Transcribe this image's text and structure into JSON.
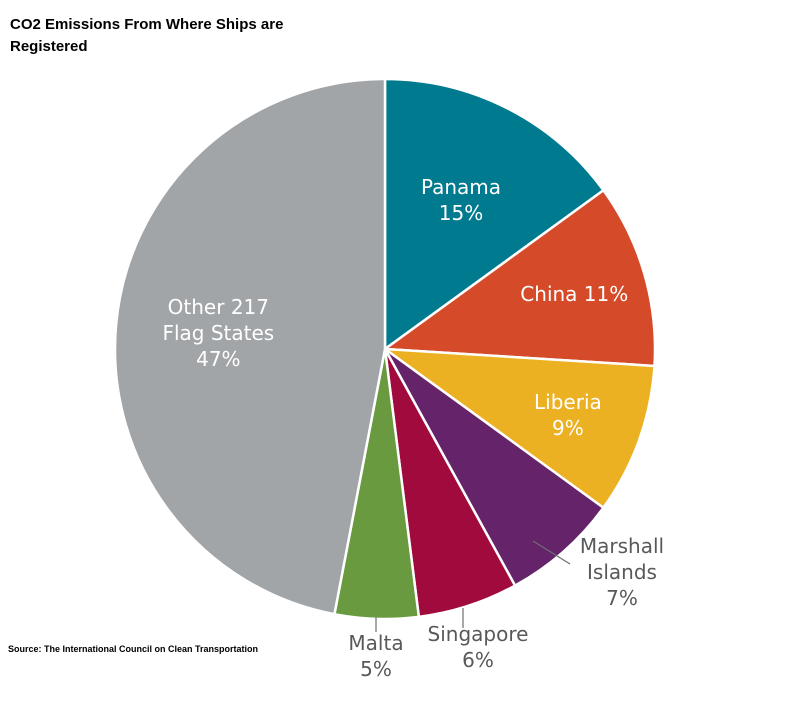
{
  "title": "CO2 Emissions From Where Ships are Registered",
  "source": "Source: The International Council on Clean Transportation",
  "chart_data": {
    "type": "pie",
    "title": "CO2 Emissions From Where Ships are Registered",
    "slices": [
      {
        "label": "Panama",
        "value": 15,
        "value_label": "15%",
        "color": "#007a8f"
      },
      {
        "label": "China",
        "value": 11,
        "value_label": "11%",
        "color": "#d54b2a"
      },
      {
        "label": "Liberia",
        "value": 9,
        "value_label": "9%",
        "color": "#ecb023"
      },
      {
        "label": "Marshall Islands",
        "value": 7,
        "value_label": "7%",
        "color": "#65236a"
      },
      {
        "label": "Singapore",
        "value": 6,
        "value_label": "6%",
        "color": "#a10a3c"
      },
      {
        "label": "Malta",
        "value": 5,
        "value_label": "5%",
        "color": "#6a9a3f"
      },
      {
        "label": "Other 217 Flag States",
        "value": 47,
        "value_label": "47%",
        "color": "#a1a5a8"
      }
    ]
  }
}
